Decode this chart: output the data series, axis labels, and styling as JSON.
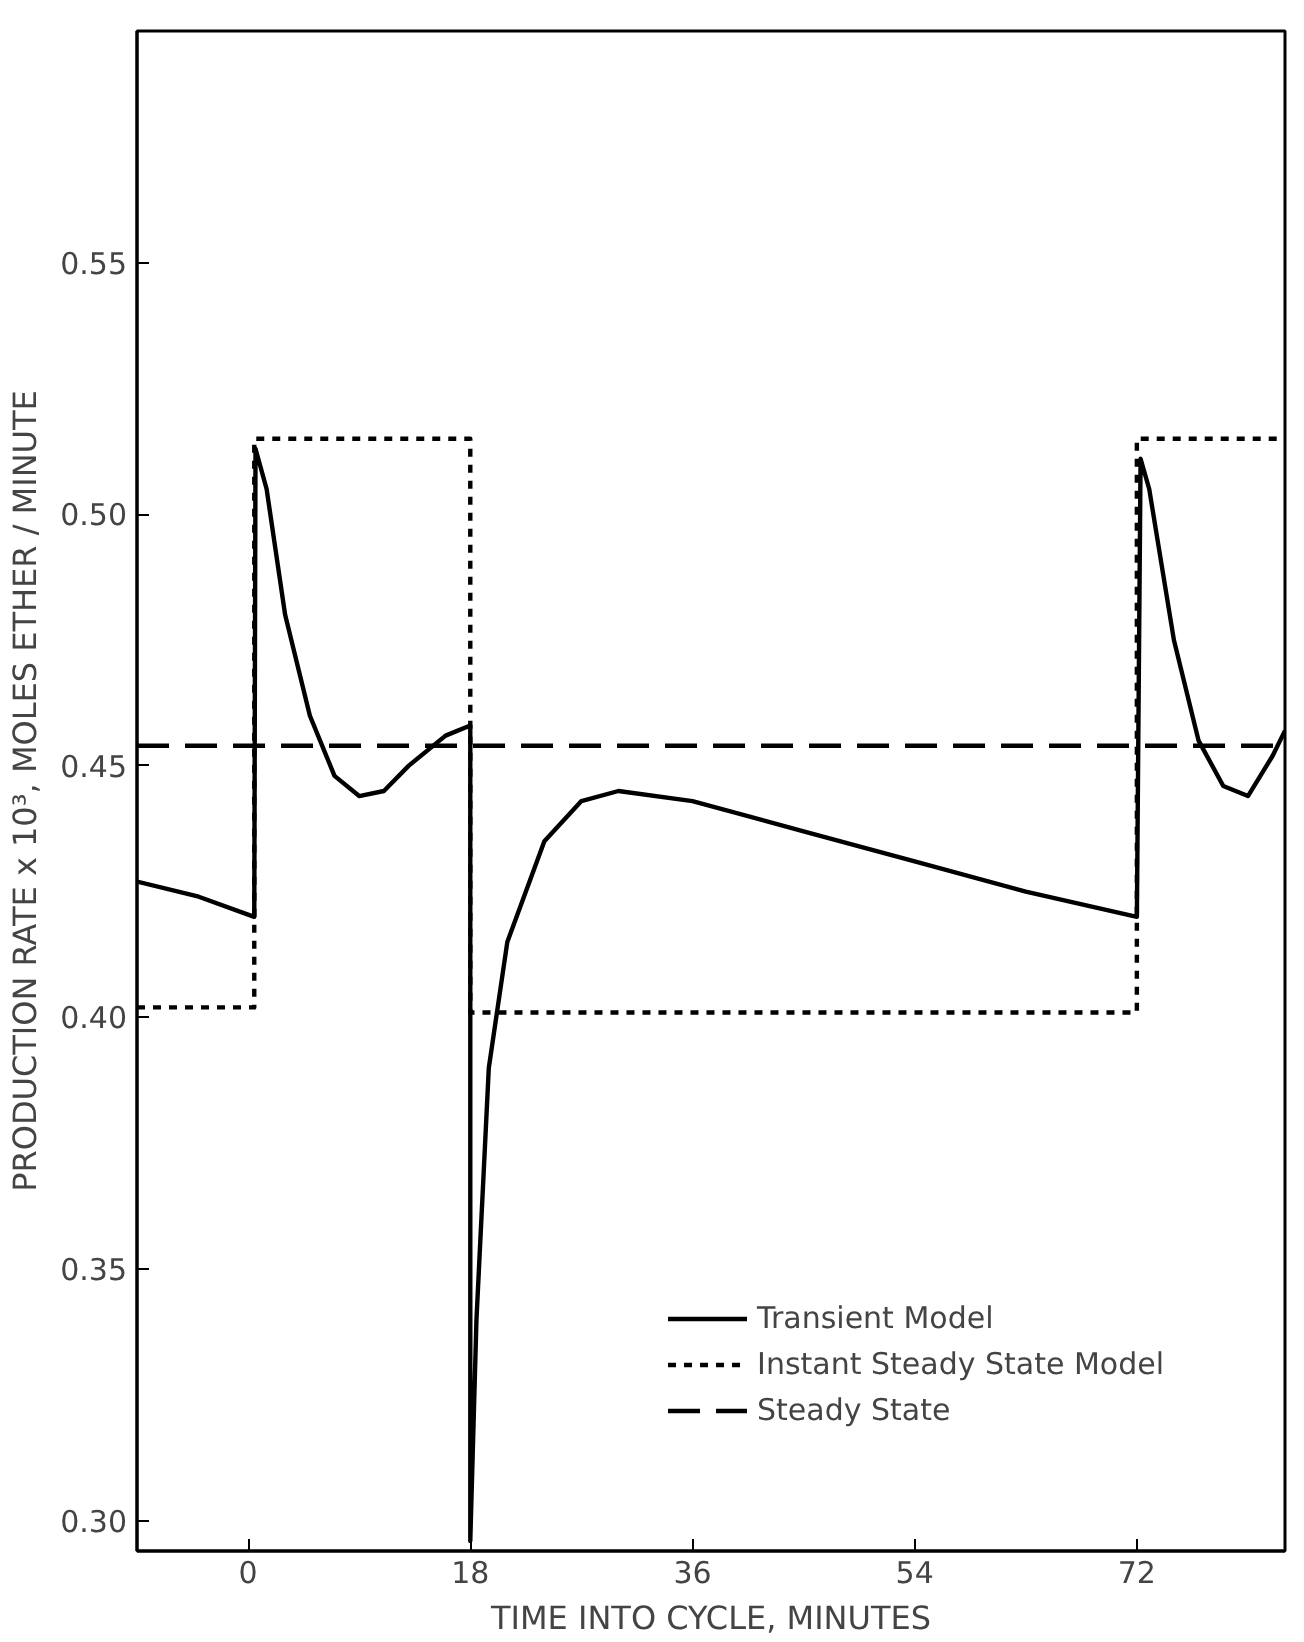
{
  "chart_data": {
    "type": "line",
    "xlabel": "TIME INTO CYCLE, MINUTES",
    "ylabel": "PRODUCTION RATE x 10³, MOLES ETHER / MINUTE",
    "xlim": [
      -9,
      84
    ],
    "ylim": [
      0.294,
      0.596
    ],
    "xticks": [
      0,
      18,
      36,
      54,
      72
    ],
    "yticks": [
      {
        "value": 0.3,
        "label": "0.30"
      },
      0.35,
      {
        "value": 0.4,
        "label": "0.40"
      },
      0.45,
      {
        "value": 0.5,
        "label": "0.50"
      },
      0.55
    ],
    "grid": false,
    "legend": "bottom right",
    "marker": "none",
    "series": [
      {
        "name": "Transient Model",
        "color": "#000000",
        "line_style": "solid",
        "x": [
          -9,
          -4,
          0.5,
          0.6,
          1.5,
          3,
          5,
          7,
          9,
          11,
          13,
          16,
          18,
          18,
          18.5,
          19.5,
          21,
          24,
          27,
          30,
          36,
          45,
          54,
          63,
          72,
          72.3,
          73,
          75,
          77,
          79,
          81,
          83,
          84
        ],
        "values": [
          0.427,
          0.424,
          0.42,
          0.513,
          0.505,
          0.48,
          0.46,
          0.448,
          0.444,
          0.445,
          0.45,
          0.456,
          0.458,
          0.296,
          0.34,
          0.39,
          0.415,
          0.435,
          0.443,
          0.445,
          0.443,
          0.437,
          0.431,
          0.425,
          0.42,
          0.511,
          0.505,
          0.475,
          0.455,
          0.446,
          0.444,
          0.452,
          0.457
        ]
      },
      {
        "name": "Instant Steady State Model",
        "color": "#000000",
        "line_style": "dotted",
        "x": [
          -9,
          0.5,
          0.5,
          18,
          18,
          72,
          72,
          84
        ],
        "values": [
          0.402,
          0.402,
          0.515,
          0.515,
          0.401,
          0.401,
          0.515,
          0.515
        ]
      },
      {
        "name": "Steady State",
        "color": "#000000",
        "line_style": "dashed",
        "x": [
          -9,
          84
        ],
        "values": [
          0.454,
          0.454
        ]
      }
    ]
  }
}
